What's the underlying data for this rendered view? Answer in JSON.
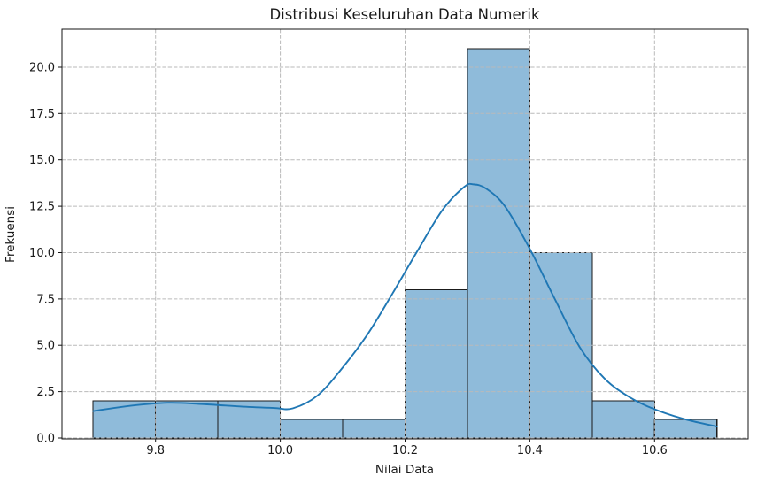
{
  "chart_data": {
    "type": "bar",
    "subtype": "histogram_with_kde",
    "title": "Distribusi Keseluruhan Data Numerik",
    "xlabel": "Nilai Data",
    "ylabel": "Frekuensi",
    "bin_edges": [
      9.7,
      9.8,
      9.9,
      10.0,
      10.1,
      10.2,
      10.3,
      10.4,
      10.5,
      10.6,
      10.7
    ],
    "counts": [
      2,
      2,
      2,
      1,
      1,
      8,
      21,
      10,
      2,
      1
    ],
    "kde": {
      "name": "kde-curve",
      "points": [
        [
          9.7,
          1.45
        ],
        [
          9.76,
          1.74
        ],
        [
          9.82,
          1.9
        ],
        [
          9.88,
          1.82
        ],
        [
          9.94,
          1.69
        ],
        [
          9.99,
          1.62
        ],
        [
          10.02,
          1.6
        ],
        [
          10.06,
          2.3
        ],
        [
          10.1,
          3.8
        ],
        [
          10.14,
          5.6
        ],
        [
          10.18,
          7.8
        ],
        [
          10.22,
          10.1
        ],
        [
          10.26,
          12.3
        ],
        [
          10.295,
          13.55
        ],
        [
          10.31,
          13.68
        ],
        [
          10.33,
          13.45
        ],
        [
          10.36,
          12.5
        ],
        [
          10.4,
          10.2
        ],
        [
          10.44,
          7.5
        ],
        [
          10.48,
          4.9
        ],
        [
          10.52,
          3.2
        ],
        [
          10.56,
          2.2
        ],
        [
          10.6,
          1.55
        ],
        [
          10.65,
          1.0
        ],
        [
          10.7,
          0.62
        ]
      ]
    },
    "xlim": [
      9.65,
      10.75
    ],
    "ylim": [
      0,
      22.05
    ],
    "xticks": {
      "values": [
        9.8,
        10.0,
        10.2,
        10.4,
        10.6
      ],
      "labels": [
        "9.8",
        "10.0",
        "10.2",
        "10.4",
        "10.6"
      ]
    },
    "yticks": {
      "values": [
        0,
        2.5,
        5,
        7.5,
        10,
        12.5,
        15,
        17.5,
        20
      ],
      "labels": [
        "0.0",
        "2.5",
        "5.0",
        "7.5",
        "10.0",
        "12.5",
        "15.0",
        "17.5",
        "20.0"
      ]
    },
    "grid": {
      "visible": true,
      "style": "dashed",
      "position": "above-bars"
    },
    "legend": {
      "visible": false
    },
    "colors": {
      "bar_fill": "#8fbbda",
      "bar_edge": "#1a1a1a",
      "kde_line": "#1f77b4",
      "grid_line": "#bababa",
      "spine": "#141414",
      "text": "#1a1a1a",
      "background": "#ffffff"
    }
  }
}
